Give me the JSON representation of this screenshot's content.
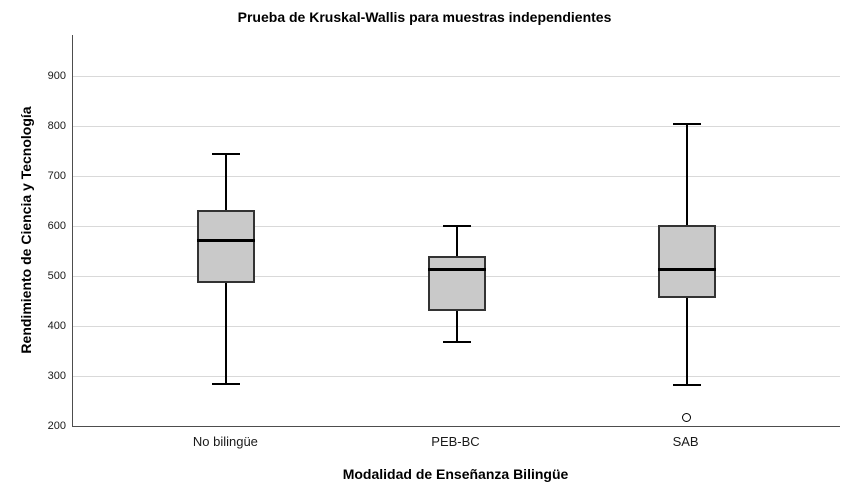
{
  "chart_data": {
    "type": "boxplot",
    "title": "Prueba de Kruskal-Wallis para muestras independientes",
    "xlabel": "Modalidad de Enseñanza Bilingüe",
    "ylabel": "Rendimiento de Ciencia y Tecnología",
    "ylim": [
      200,
      982
    ],
    "yticks": [
      200,
      300,
      400,
      500,
      600,
      700,
      800,
      900
    ],
    "grid": "horizontal",
    "legend": "none",
    "categories": [
      "No bilingüe",
      "PEB-BC",
      "SAB"
    ],
    "series": [
      {
        "category": "No bilingüe",
        "whisker_low": 285,
        "q1": 486,
        "median": 571,
        "q3": 632,
        "whisker_high": 745,
        "outliers": []
      },
      {
        "category": "PEB-BC",
        "whisker_low": 369,
        "q1": 430,
        "median": 514,
        "q3": 540,
        "whisker_high": 600,
        "outliers": []
      },
      {
        "category": "SAB",
        "whisker_low": 283,
        "q1": 457,
        "median": 514,
        "q3": 602,
        "whisker_high": 805,
        "outliers": [
          218
        ]
      }
    ],
    "colors": {
      "box_fill": "#c9c9c9",
      "box_border": "#333333",
      "median": "#000000",
      "whisker": "#000000",
      "gridline": "#d9d9d9",
      "axis": "#4d4d4d",
      "text": "#1a1a1a",
      "background": "#ffffff"
    }
  }
}
